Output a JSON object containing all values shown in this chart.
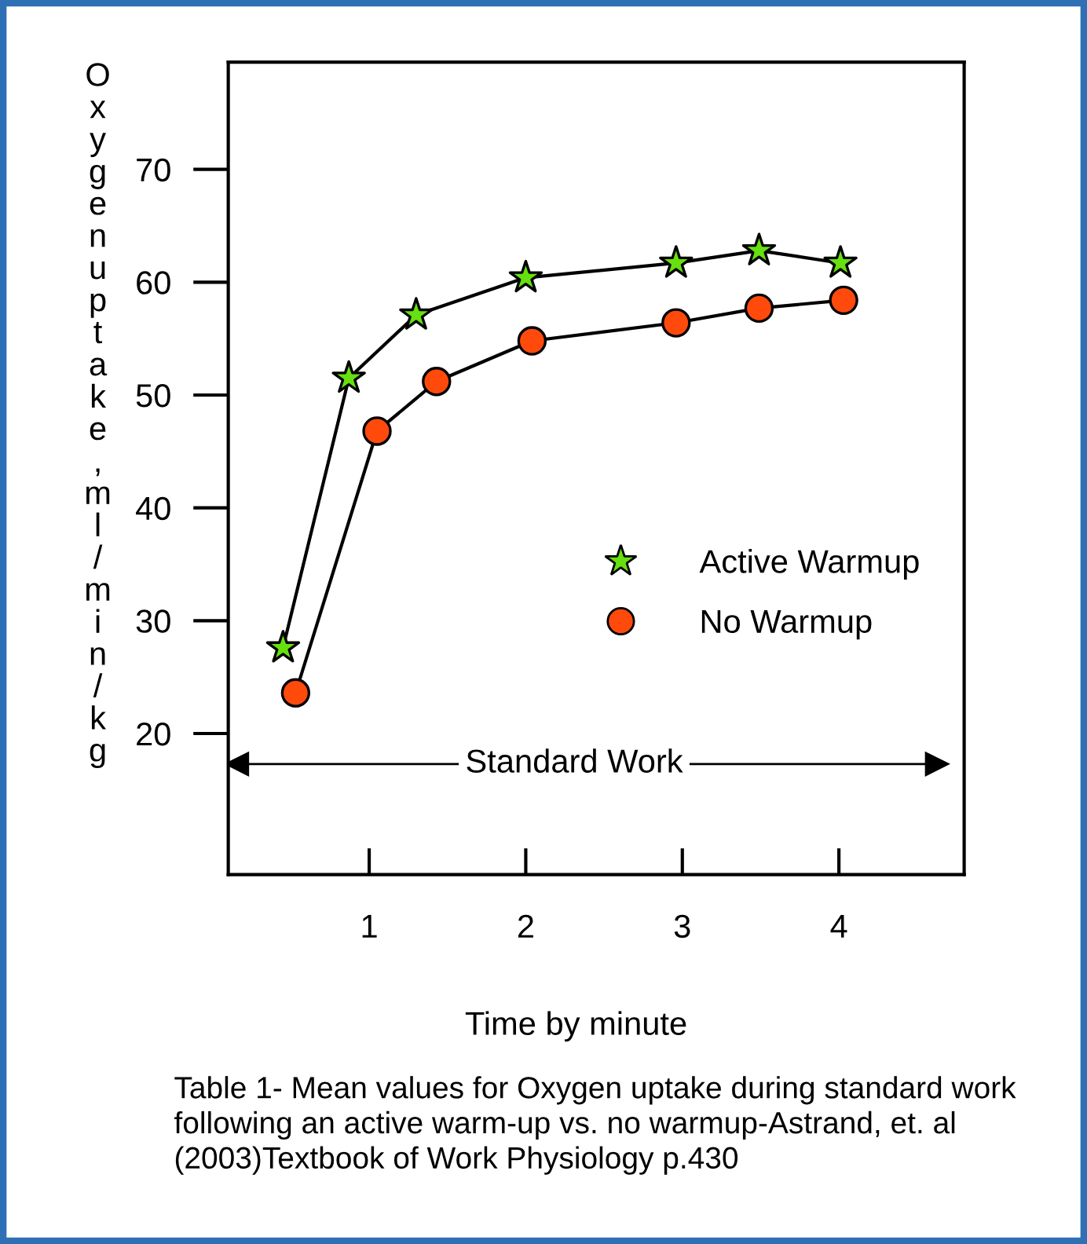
{
  "chart_data": {
    "type": "line",
    "ylabel": "Oxygen uptake , ml / min / kg",
    "xlabel": "Time by minute",
    "xlim": [
      0.1,
      4.8
    ],
    "xticks": [
      1,
      2,
      3,
      4
    ],
    "ylim": [
      7.5,
      79.5
    ],
    "yticks": [
      20,
      30,
      40,
      50,
      60,
      70
    ],
    "series": [
      {
        "name": "Active Warmup",
        "color": "#66e00f",
        "marker": "star",
        "x": [
          0.45,
          0.87,
          1.3,
          2.0,
          2.96,
          3.49,
          4.01
        ],
        "values": [
          27.6,
          51.5,
          57.1,
          60.4,
          61.7,
          62.8,
          61.7
        ]
      },
      {
        "name": "No Warmup",
        "color": "#ff4a0c",
        "marker": "circle",
        "x": [
          0.53,
          1.05,
          1.43,
          2.04,
          2.96,
          3.49,
          4.03
        ],
        "values": [
          23.6,
          46.8,
          51.2,
          54.8,
          56.4,
          57.7,
          58.4
        ]
      }
    ],
    "annotations": [
      "Table 1- Mean values for Oxygen uptake during standard work following an active warm-up vs. no warmup-Astrand, et. al (2003)Textbook of Work Physiology p.430"
    ],
    "ref_lines": [
      {
        "axis": "y",
        "value": 17.3,
        "label": "Standard Work",
        "color": "#000000",
        "line_style": "solid"
      }
    ],
    "grid": false,
    "legend": "right",
    "line_style": "solid"
  }
}
